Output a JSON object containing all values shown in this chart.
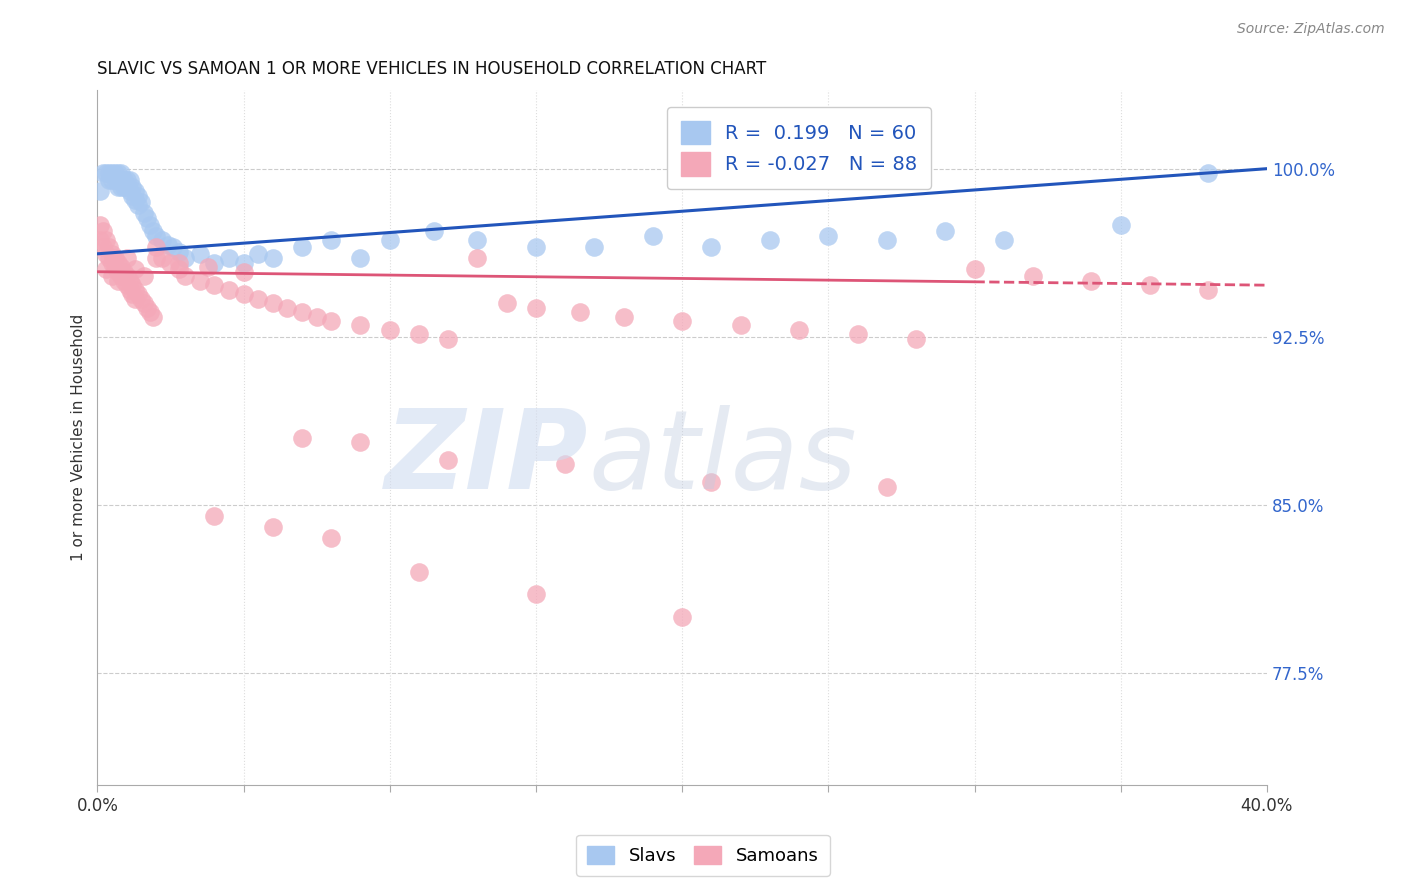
{
  "title": "SLAVIC VS SAMOAN 1 OR MORE VEHICLES IN HOUSEHOLD CORRELATION CHART",
  "source": "Source: ZipAtlas.com",
  "ylabel": "1 or more Vehicles in Household",
  "ytick_labels": [
    "77.5%",
    "85.0%",
    "92.5%",
    "100.0%"
  ],
  "ytick_values": [
    0.775,
    0.85,
    0.925,
    1.0
  ],
  "xlim": [
    0.0,
    0.4
  ],
  "ylim": [
    0.725,
    1.035
  ],
  "legend_slavs_R": "0.199",
  "legend_slavs_N": "60",
  "legend_samoans_R": "-0.027",
  "legend_samoans_N": "88",
  "slavs_color": "#A8C8F0",
  "samoans_color": "#F4A8B8",
  "trend_slavs_color": "#2255BB",
  "trend_samoans_color": "#DD5577",
  "background_color": "#FFFFFF",
  "slavs_x": [
    0.001,
    0.002,
    0.003,
    0.004,
    0.004,
    0.005,
    0.005,
    0.006,
    0.006,
    0.007,
    0.007,
    0.007,
    0.008,
    0.008,
    0.009,
    0.009,
    0.01,
    0.01,
    0.011,
    0.011,
    0.012,
    0.012,
    0.013,
    0.013,
    0.014,
    0.014,
    0.015,
    0.016,
    0.017,
    0.018,
    0.019,
    0.02,
    0.022,
    0.024,
    0.026,
    0.028,
    0.03,
    0.035,
    0.04,
    0.045,
    0.05,
    0.055,
    0.06,
    0.07,
    0.08,
    0.09,
    0.1,
    0.115,
    0.13,
    0.15,
    0.17,
    0.19,
    0.21,
    0.23,
    0.25,
    0.27,
    0.29,
    0.31,
    0.35,
    0.38
  ],
  "slavs_y": [
    0.99,
    0.998,
    0.998,
    0.995,
    0.998,
    0.998,
    0.995,
    0.998,
    0.995,
    0.998,
    0.995,
    0.992,
    0.998,
    0.992,
    0.995,
    0.992,
    0.995,
    0.992,
    0.995,
    0.99,
    0.992,
    0.988,
    0.99,
    0.986,
    0.988,
    0.984,
    0.985,
    0.98,
    0.978,
    0.975,
    0.972,
    0.97,
    0.968,
    0.966,
    0.965,
    0.963,
    0.96,
    0.962,
    0.958,
    0.96,
    0.958,
    0.962,
    0.96,
    0.965,
    0.968,
    0.96,
    0.968,
    0.972,
    0.968,
    0.965,
    0.965,
    0.97,
    0.965,
    0.968,
    0.97,
    0.968,
    0.972,
    0.968,
    0.975,
    0.998
  ],
  "samoans_x": [
    0.001,
    0.001,
    0.002,
    0.002,
    0.003,
    0.003,
    0.004,
    0.004,
    0.005,
    0.005,
    0.006,
    0.006,
    0.007,
    0.007,
    0.008,
    0.008,
    0.009,
    0.009,
    0.01,
    0.01,
    0.011,
    0.011,
    0.012,
    0.012,
    0.013,
    0.013,
    0.014,
    0.015,
    0.016,
    0.017,
    0.018,
    0.019,
    0.02,
    0.022,
    0.025,
    0.028,
    0.03,
    0.035,
    0.04,
    0.045,
    0.05,
    0.055,
    0.06,
    0.065,
    0.07,
    0.075,
    0.08,
    0.09,
    0.1,
    0.11,
    0.12,
    0.13,
    0.14,
    0.15,
    0.165,
    0.18,
    0.2,
    0.22,
    0.24,
    0.26,
    0.28,
    0.3,
    0.32,
    0.34,
    0.36,
    0.38,
    0.003,
    0.005,
    0.007,
    0.01,
    0.013,
    0.016,
    0.02,
    0.028,
    0.038,
    0.05,
    0.07,
    0.09,
    0.12,
    0.16,
    0.21,
    0.27,
    0.04,
    0.06,
    0.08,
    0.11,
    0.15,
    0.2
  ],
  "samoans_y": [
    0.975,
    0.968,
    0.972,
    0.965,
    0.968,
    0.962,
    0.965,
    0.96,
    0.962,
    0.958,
    0.96,
    0.956,
    0.958,
    0.954,
    0.956,
    0.952,
    0.954,
    0.95,
    0.952,
    0.948,
    0.95,
    0.946,
    0.948,
    0.944,
    0.946,
    0.942,
    0.944,
    0.942,
    0.94,
    0.938,
    0.936,
    0.934,
    0.965,
    0.96,
    0.958,
    0.955,
    0.952,
    0.95,
    0.948,
    0.946,
    0.944,
    0.942,
    0.94,
    0.938,
    0.936,
    0.934,
    0.932,
    0.93,
    0.928,
    0.926,
    0.924,
    0.96,
    0.94,
    0.938,
    0.936,
    0.934,
    0.932,
    0.93,
    0.928,
    0.926,
    0.924,
    0.955,
    0.952,
    0.95,
    0.948,
    0.946,
    0.955,
    0.952,
    0.95,
    0.96,
    0.955,
    0.952,
    0.96,
    0.958,
    0.956,
    0.954,
    0.88,
    0.878,
    0.87,
    0.868,
    0.86,
    0.858,
    0.845,
    0.84,
    0.835,
    0.82,
    0.81,
    0.8
  ]
}
